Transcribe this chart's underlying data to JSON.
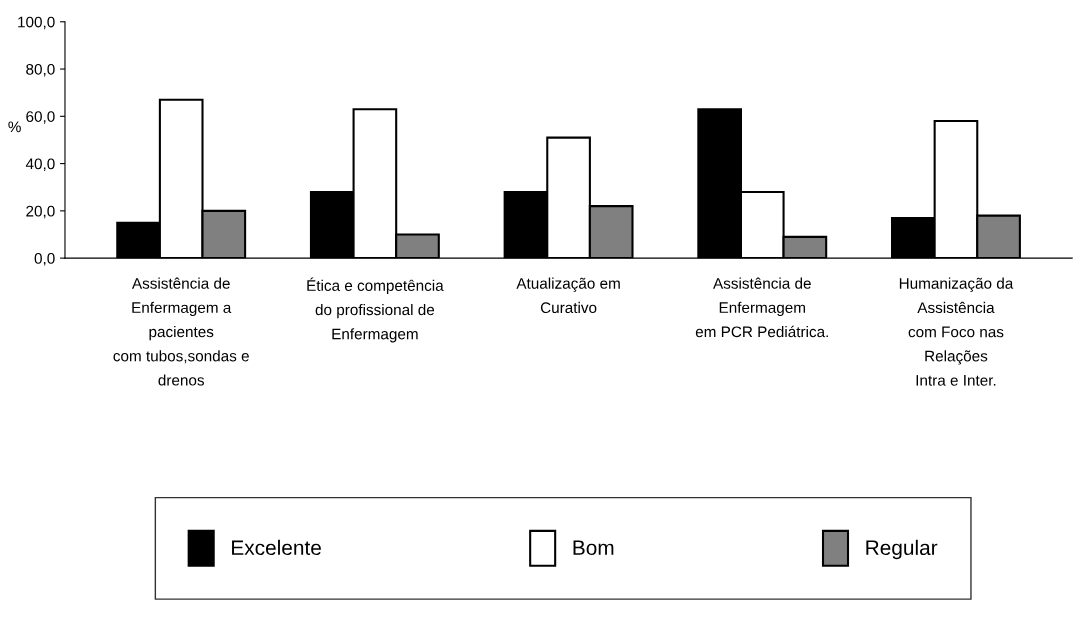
{
  "chart_data": {
    "type": "bar",
    "ylabel": "%",
    "categories": [
      "Assistência de\nEnfermagem a\npacientes\ncom tubos,sondas e\ndrenos",
      "Ética e competência\ndo profissional de\nEnfermagem",
      "Atualização em\nCurativo",
      "Assistência de\nEnfermagem\nem PCR Pediátrica.",
      "Humanização da\nAssistência\ncom Foco nas\nRelações\nIntra e Inter."
    ],
    "series": [
      {
        "name": "Excelente",
        "color": "#000000",
        "values": [
          15,
          28,
          28,
          63,
          17
        ]
      },
      {
        "name": "Bom",
        "color": "#ffffff",
        "values": [
          67,
          63,
          51,
          28,
          58
        ]
      },
      {
        "name": "Regular",
        "color": "#808080",
        "values": [
          20,
          10,
          22,
          9,
          18
        ]
      }
    ],
    "ylim": [
      0,
      100
    ],
    "yticks": [
      {
        "value": 0,
        "label": "0,0"
      },
      {
        "value": 20,
        "label": "20,0"
      },
      {
        "value": 40,
        "label": "40,0"
      },
      {
        "value": 60,
        "label": "60,0"
      },
      {
        "value": 80,
        "label": "80,0"
      },
      {
        "value": 100,
        "label": "100,0"
      }
    ],
    "grid": false,
    "legend": "bottom"
  }
}
